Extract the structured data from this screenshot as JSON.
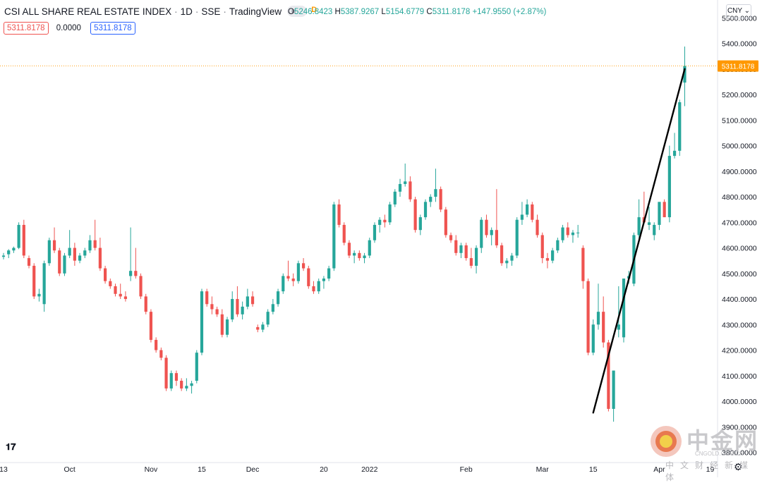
{
  "header": {
    "title": "CSI ALL SHARE REAL ESTATE INDEX",
    "interval": "1D",
    "exchange": "SSE",
    "source": "TradingView",
    "badge_letter": "D"
  },
  "ohlc": {
    "o_label": "O",
    "o": "5246.8423",
    "h_label": "H",
    "h": "5387.9267",
    "l_label": "L",
    "l": "5154.6779",
    "c_label": "C",
    "c": "5311.8178",
    "change": "+147.9550 (+2.87%)"
  },
  "values": {
    "left": "5311.8178",
    "mid": "0.0000",
    "right": "5311.8178"
  },
  "currency": "CNY",
  "price_label": "5311.8178",
  "watermark": {
    "cn": "中金网",
    "en": "CNGOLD.COM.CN",
    "sub": "中文财经新媒体"
  },
  "colors": {
    "up": "#26a69a",
    "down": "#ef5350",
    "price_line": "#ff9800",
    "trendline": "#000000"
  },
  "icons": {
    "logo": "tradingview-logo-icon",
    "settings": "gear-icon"
  },
  "chart_data": {
    "type": "candlestick",
    "ylim": [
      3760,
      5570
    ],
    "y_ticks": [
      3800,
      3900,
      4000,
      4100,
      4200,
      4300,
      4400,
      4500,
      4600,
      4700,
      4800,
      4900,
      5000,
      5100,
      5200,
      5300,
      5400,
      5500
    ],
    "y_tick_labels": [
      "3800.0000",
      "3900.0000",
      "4000.0000",
      "4100.0000",
      "4200.0000",
      "4300.0000",
      "4400.0000",
      "4500.0000",
      "4600.0000",
      "4700.0000",
      "4800.0000",
      "4900.0000",
      "5000.0000",
      "5100.0000",
      "5200.0000",
      "5300.0000",
      "5400.0000",
      "5500.0000"
    ],
    "x_labels": [
      "13",
      "Oct",
      "Nov",
      "15",
      "Dec",
      "20",
      "2022",
      "Feb",
      "Mar",
      "15",
      "Apr",
      "19"
    ],
    "x_label_positions": [
      0,
      13,
      29,
      39,
      49,
      63,
      72,
      91,
      106,
      116,
      129,
      139
    ],
    "last_price": 5311.8178,
    "trendline": [
      [
        116,
        3955
      ],
      [
        134,
        5300
      ]
    ],
    "candles": [
      [
        4565,
        4580,
        4555,
        4570
      ],
      [
        4575,
        4595,
        4560,
        4590
      ],
      [
        4590,
        4605,
        4580,
        4600
      ],
      [
        4600,
        4700,
        4595,
        4690
      ],
      [
        4690,
        4710,
        4560,
        4570
      ],
      [
        4560,
        4570,
        4520,
        4530
      ],
      [
        4530,
        4540,
        4400,
        4410
      ],
      [
        4410,
        4440,
        4390,
        4420
      ],
      [
        4380,
        4550,
        4350,
        4540
      ],
      [
        4540,
        4640,
        4530,
        4630
      ],
      [
        4630,
        4680,
        4580,
        4590
      ],
      [
        4590,
        4600,
        4490,
        4500
      ],
      [
        4500,
        4580,
        4490,
        4570
      ],
      [
        4570,
        4670,
        4560,
        4600
      ],
      [
        4600,
        4620,
        4530,
        4550
      ],
      [
        4550,
        4580,
        4540,
        4570
      ],
      [
        4570,
        4600,
        4560,
        4590
      ],
      [
        4590,
        4650,
        4580,
        4630
      ],
      [
        4630,
        4710,
        4590,
        4600
      ],
      [
        4600,
        4640,
        4510,
        4520
      ],
      [
        4520,
        4530,
        4460,
        4470
      ],
      [
        4470,
        4480,
        4440,
        4450
      ],
      [
        4450,
        4460,
        4410,
        4420
      ],
      [
        4420,
        4460,
        4400,
        4410
      ],
      [
        4410,
        4430,
        4390,
        4400
      ],
      [
        4490,
        4680,
        4470,
        4510
      ],
      [
        4510,
        4600,
        4480,
        4490
      ],
      [
        4490,
        4500,
        4400,
        4410
      ],
      [
        4410,
        4420,
        4340,
        4350
      ],
      [
        4350,
        4360,
        4230,
        4240
      ],
      [
        4240,
        4250,
        4190,
        4200
      ],
      [
        4200,
        4210,
        4160,
        4170
      ],
      [
        4170,
        4180,
        4040,
        4050
      ],
      [
        4050,
        4120,
        4040,
        4110
      ],
      [
        4110,
        4120,
        4060,
        4080
      ],
      [
        4080,
        4090,
        4040,
        4050
      ],
      [
        4050,
        4090,
        4040,
        4060
      ],
      [
        4060,
        4080,
        4030,
        4070
      ],
      [
        4080,
        4200,
        4070,
        4190
      ],
      [
        4190,
        4440,
        4180,
        4430
      ],
      [
        4430,
        4440,
        4370,
        4380
      ],
      [
        4380,
        4410,
        4340,
        4360
      ],
      [
        4360,
        4370,
        4330,
        4340
      ],
      [
        4340,
        4360,
        4250,
        4260
      ],
      [
        4260,
        4330,
        4250,
        4320
      ],
      [
        4320,
        4430,
        4310,
        4400
      ],
      [
        4400,
        4450,
        4330,
        4340
      ],
      [
        4340,
        4390,
        4320,
        4370
      ],
      [
        4370,
        4440,
        4360,
        4410
      ],
      [
        4410,
        4430,
        4370,
        4380
      ],
      [
        4290,
        4300,
        4270,
        4280
      ],
      [
        4280,
        4310,
        4270,
        4300
      ],
      [
        4300,
        4360,
        4290,
        4350
      ],
      [
        4350,
        4400,
        4340,
        4380
      ],
      [
        4380,
        4440,
        4370,
        4430
      ],
      [
        4430,
        4500,
        4420,
        4490
      ],
      [
        4490,
        4550,
        4470,
        4480
      ],
      [
        4480,
        4500,
        4450,
        4470
      ],
      [
        4470,
        4550,
        4460,
        4540
      ],
      [
        4540,
        4560,
        4510,
        4520
      ],
      [
        4520,
        4530,
        4440,
        4450
      ],
      [
        4450,
        4470,
        4420,
        4430
      ],
      [
        4430,
        4480,
        4420,
        4470
      ],
      [
        4470,
        4490,
        4440,
        4480
      ],
      [
        4480,
        4530,
        4470,
        4520
      ],
      [
        4520,
        4780,
        4510,
        4770
      ],
      [
        4770,
        4790,
        4680,
        4690
      ],
      [
        4690,
        4700,
        4610,
        4620
      ],
      [
        4620,
        4630,
        4560,
        4570
      ],
      [
        4570,
        4590,
        4540,
        4580
      ],
      [
        4580,
        4590,
        4550,
        4560
      ],
      [
        4560,
        4580,
        4540,
        4570
      ],
      [
        4570,
        4640,
        4560,
        4630
      ],
      [
        4630,
        4700,
        4620,
        4690
      ],
      [
        4690,
        4720,
        4660,
        4710
      ],
      [
        4710,
        4730,
        4680,
        4700
      ],
      [
        4700,
        4780,
        4690,
        4770
      ],
      [
        4770,
        4830,
        4760,
        4820
      ],
      [
        4820,
        4870,
        4800,
        4850
      ],
      [
        4850,
        4930,
        4840,
        4860
      ],
      [
        4860,
        4880,
        4780,
        4790
      ],
      [
        4790,
        4800,
        4660,
        4670
      ],
      [
        4670,
        4730,
        4650,
        4720
      ],
      [
        4720,
        4790,
        4710,
        4780
      ],
      [
        4780,
        4810,
        4760,
        4800
      ],
      [
        4800,
        4910,
        4780,
        4830
      ],
      [
        4830,
        4840,
        4740,
        4750
      ],
      [
        4750,
        4760,
        4640,
        4650
      ],
      [
        4650,
        4660,
        4620,
        4630
      ],
      [
        4630,
        4650,
        4570,
        4580
      ],
      [
        4580,
        4620,
        4560,
        4610
      ],
      [
        4610,
        4620,
        4550,
        4560
      ],
      [
        4560,
        4600,
        4520,
        4530
      ],
      [
        4530,
        4610,
        4500,
        4600
      ],
      [
        4600,
        4720,
        4580,
        4710
      ],
      [
        4710,
        4730,
        4640,
        4650
      ],
      [
        4650,
        4680,
        4610,
        4670
      ],
      [
        4670,
        4830,
        4600,
        4610
      ],
      [
        4610,
        4620,
        4530,
        4540
      ],
      [
        4540,
        4560,
        4520,
        4550
      ],
      [
        4550,
        4580,
        4530,
        4570
      ],
      [
        4570,
        4720,
        4560,
        4710
      ],
      [
        4710,
        4780,
        4690,
        4730
      ],
      [
        4730,
        4790,
        4720,
        4770
      ],
      [
        4770,
        4780,
        4700,
        4710
      ],
      [
        4710,
        4730,
        4640,
        4650
      ],
      [
        4650,
        4660,
        4540,
        4560
      ],
      [
        4560,
        4580,
        4520,
        4550
      ],
      [
        4550,
        4600,
        4540,
        4590
      ],
      [
        4590,
        4640,
        4580,
        4630
      ],
      [
        4630,
        4690,
        4620,
        4680
      ],
      [
        4680,
        4700,
        4640,
        4650
      ],
      [
        4650,
        4670,
        4620,
        4660
      ],
      [
        4660,
        4690,
        4640,
        4660
      ],
      [
        4600,
        4610,
        4440,
        4470
      ],
      [
        4470,
        4480,
        4180,
        4190
      ],
      [
        4190,
        4320,
        4180,
        4300
      ],
      [
        4300,
        4460,
        4280,
        4350
      ],
      [
        4350,
        4410,
        4210,
        4230
      ],
      [
        4230,
        4240,
        3960,
        3970
      ],
      [
        3970,
        4120,
        3920,
        4120
      ],
      [
        4280,
        4450,
        4250,
        4300
      ],
      [
        4250,
        4480,
        4230,
        4480
      ],
      [
        4480,
        4510,
        4460,
        4490
      ],
      [
        4460,
        4660,
        4450,
        4650
      ],
      [
        4650,
        4790,
        4630,
        4720
      ],
      [
        4720,
        4820,
        4700,
        4700
      ],
      [
        4690,
        4760,
        4670,
        4700
      ],
      [
        4650,
        4700,
        4630,
        4690
      ],
      [
        4690,
        4770,
        4670,
        4780
      ],
      [
        4780,
        4790,
        4720,
        4720
      ],
      [
        4720,
        5000,
        4700,
        4960
      ],
      [
        4960,
        5050,
        4950,
        4980
      ],
      [
        4980,
        5180,
        4960,
        5170
      ],
      [
        5246.8423,
        5387.9267,
        5154.6779,
        5311.8178
      ]
    ]
  }
}
